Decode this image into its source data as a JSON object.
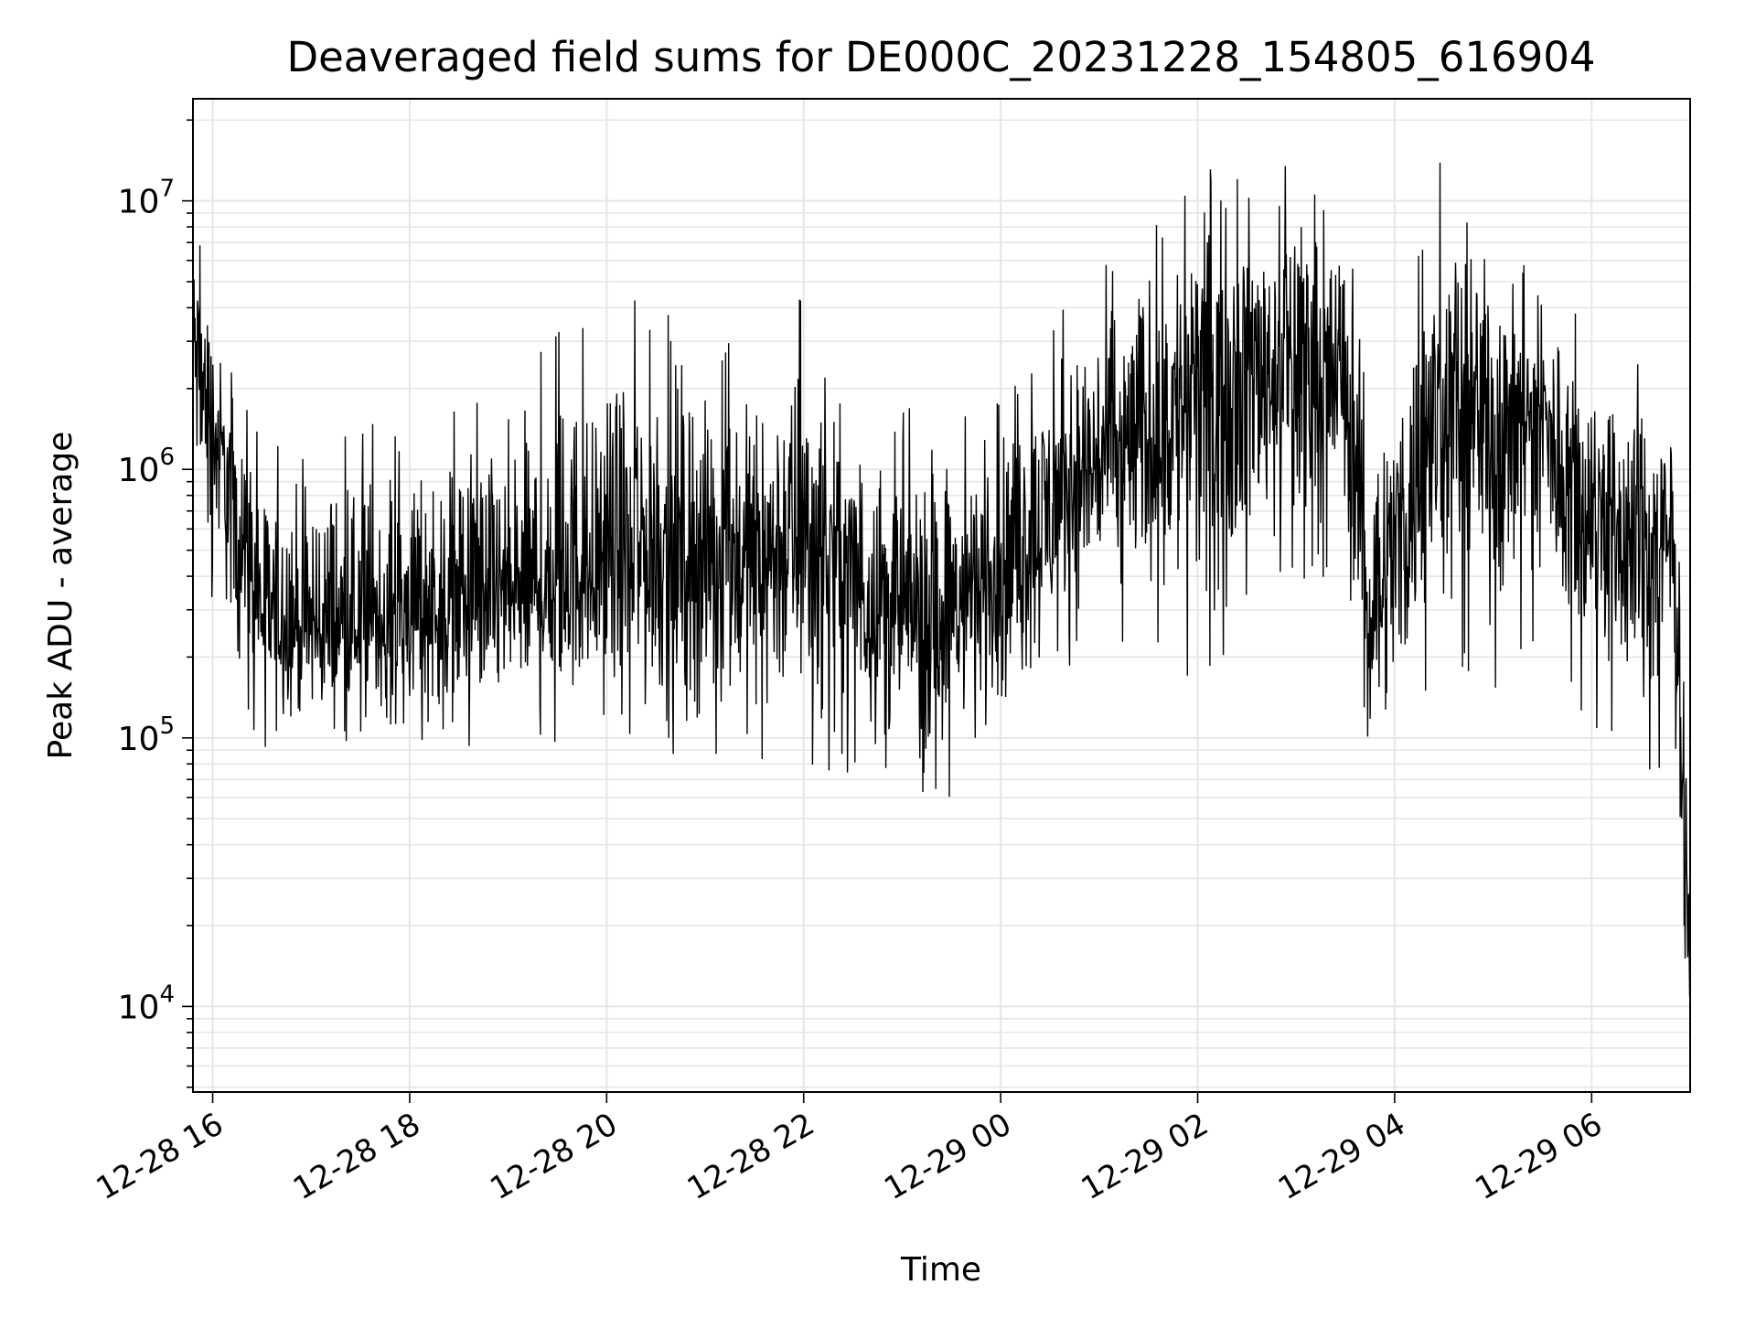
{
  "chart_data": {
    "type": "line",
    "title": "Deaveraged field sums for DE000C_20231228_154805_616904",
    "xlabel": "Time",
    "ylabel": "Peak ADU - average",
    "yscale": "log",
    "ylim": [
      4800,
      24000000
    ],
    "xlim": [
      "2023-12-28 15:48",
      "2023-12-29 07:00"
    ],
    "grid": true,
    "line_color": "#000000",
    "grid_color": "#e6e6e6",
    "x_ticks": [
      {
        "value": "2023-12-28 16:00",
        "label": "12-28 16"
      },
      {
        "value": "2023-12-28 18:00",
        "label": "12-28 18"
      },
      {
        "value": "2023-12-28 20:00",
        "label": "12-28 20"
      },
      {
        "value": "2023-12-28 22:00",
        "label": "12-28 22"
      },
      {
        "value": "2023-12-29 00:00",
        "label": "12-29 00"
      },
      {
        "value": "2023-12-29 02:00",
        "label": "12-29 02"
      },
      {
        "value": "2023-12-29 04:00",
        "label": "12-29 04"
      },
      {
        "value": "2023-12-29 06:00",
        "label": "12-29 06"
      }
    ],
    "y_ticks": [
      {
        "value": 10000,
        "base": "10",
        "exp": "4"
      },
      {
        "value": 100000,
        "base": "10",
        "exp": "5"
      },
      {
        "value": 1000000,
        "base": "10",
        "exp": "6"
      },
      {
        "value": 10000000,
        "base": "10",
        "exp": "7"
      }
    ],
    "series": [
      {
        "x": [
          "2023-12-28 15:48",
          "2023-12-28 16:00",
          "2023-12-28 16:15",
          "2023-12-28 16:30",
          "2023-12-28 17:00",
          "2023-12-28 17:30",
          "2023-12-28 18:00",
          "2023-12-28 18:30",
          "2023-12-28 19:00",
          "2023-12-28 19:30",
          "2023-12-28 20:00",
          "2023-12-28 20:30",
          "2023-12-28 21:00",
          "2023-12-28 21:30",
          "2023-12-28 22:00",
          "2023-12-28 22:30",
          "2023-12-28 23:00",
          "2023-12-28 23:30",
          "2023-12-29 00:00",
          "2023-12-29 00:30",
          "2023-12-29 01:00",
          "2023-12-29 01:30",
          "2023-12-29 02:00",
          "2023-12-29 02:30",
          "2023-12-29 03:00",
          "2023-12-29 03:30",
          "2023-12-29 03:45",
          "2023-12-29 04:00",
          "2023-12-29 04:30",
          "2023-12-29 05:00",
          "2023-12-29 05:30",
          "2023-12-29 06:00",
          "2023-12-29 06:30",
          "2023-12-29 06:50",
          "2023-12-29 07:00"
        ],
        "center": [
          3000000,
          1500000,
          600000,
          300000,
          250000,
          260000,
          300000,
          320000,
          330000,
          380000,
          450000,
          500000,
          480000,
          450000,
          550000,
          400000,
          280000,
          300000,
          420000,
          700000,
          1100000,
          1300000,
          2000000,
          2400000,
          2600000,
          2300000,
          300000,
          500000,
          1800000,
          1700000,
          1500000,
          800000,
          500000,
          500000,
          20000
        ],
        "high": [
          9000000,
          4500000,
          2500000,
          1300000,
          1500000,
          1600000,
          1500000,
          1800000,
          2000000,
          3500000,
          3500000,
          5500000,
          3000000,
          3000000,
          4800000,
          2000000,
          2000000,
          1800000,
          1800000,
          3500000,
          6000000,
          9000000,
          14000000,
          14000000,
          14000000,
          10000000,
          2500000,
          3000000,
          16000000,
          8000000,
          5000000,
          3500000,
          2500000,
          2400000,
          60000
        ],
        "low": [
          500000,
          300000,
          150000,
          90000,
          90000,
          100000,
          90000,
          90000,
          90000,
          95000,
          95000,
          70000,
          70000,
          80000,
          80000,
          70000,
          60000,
          60000,
          80000,
          140000,
          200000,
          250000,
          120000,
          300000,
          350000,
          400000,
          75000,
          90000,
          200000,
          150000,
          200000,
          100000,
          70000,
          80000,
          6800
        ]
      }
    ]
  }
}
